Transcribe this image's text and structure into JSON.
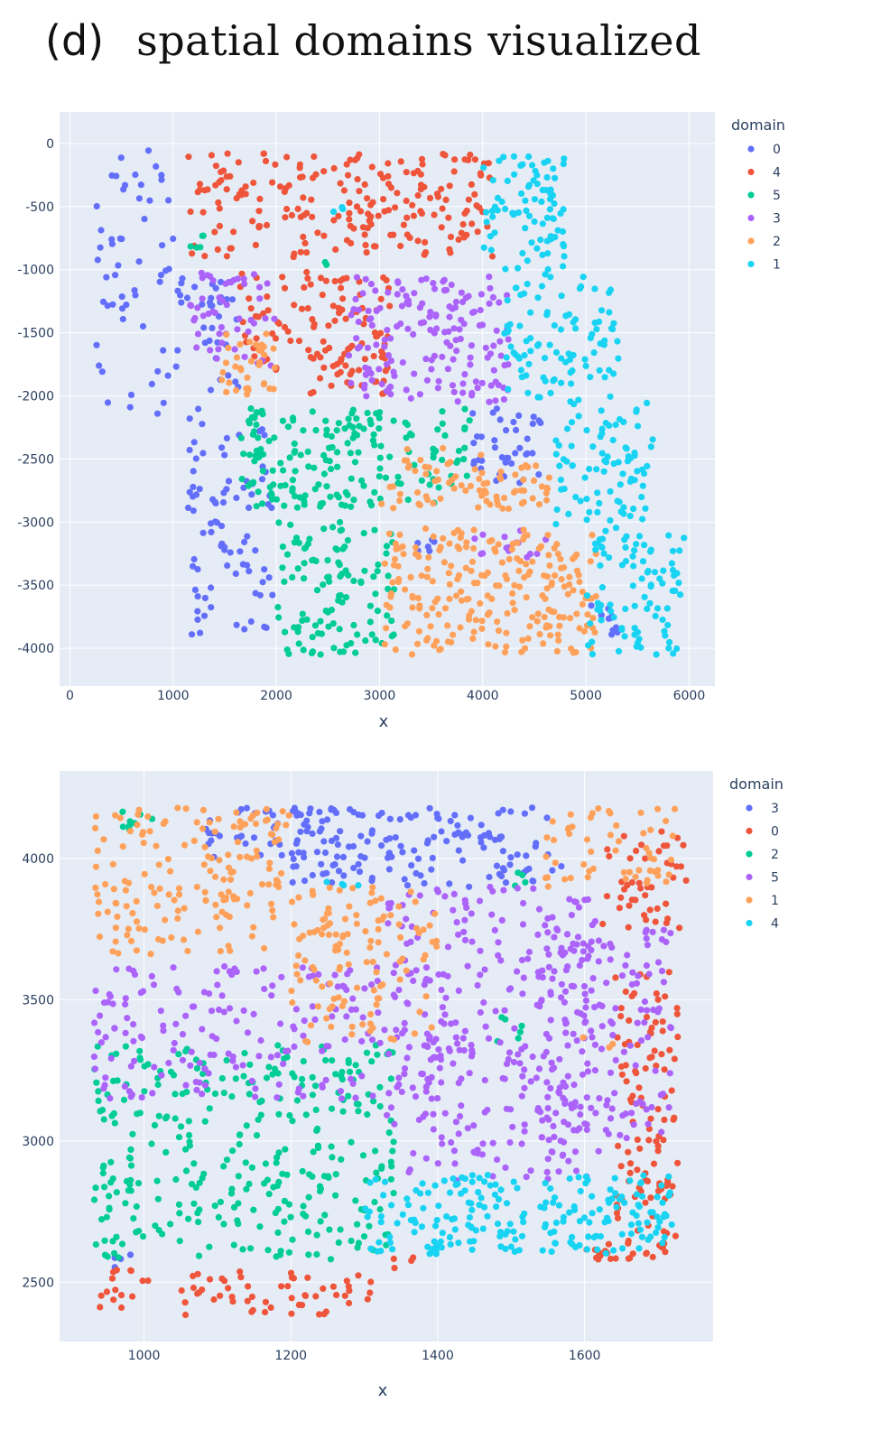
{
  "figure": {
    "panel_label": "(d)",
    "title": "spatial domains visualized"
  },
  "colors": {
    "domain_0": "#636efa",
    "domain_1": "#ef553b",
    "domain_2": "#00cc96",
    "domain_3": "#ab63fa",
    "domain_4": "#ffa15a",
    "domain_5": "#19d3f3",
    "plot_bg": "#e5ecf6",
    "grid": "#ffffff"
  },
  "chart_data": [
    {
      "type": "scatter",
      "xlabel": "x",
      "ylabel": "",
      "xlim": [
        -100,
        6250
      ],
      "ylim": [
        -4300,
        250
      ],
      "xticks": [
        0,
        1000,
        2000,
        3000,
        4000,
        5000,
        6000
      ],
      "yticks": [
        0,
        -500,
        -1000,
        -1500,
        -2000,
        -2500,
        -3000,
        -3500,
        -4000
      ],
      "grid": true,
      "legend": {
        "title": "domain",
        "placement": "top-right-outside",
        "entries": [
          "0",
          "4",
          "5",
          "3",
          "2",
          "1"
        ]
      },
      "series": [
        {
          "name": "0",
          "color": "#636efa",
          "regions": [
            {
              "x": [
                250,
                1000
              ],
              "y": [
                -2150,
                -50
              ],
              "n": 55
            },
            {
              "x": [
                1000,
                1650
              ],
              "y": [
                -2000,
                -1050
              ],
              "n": 35
            },
            {
              "x": [
                1100,
                1650
              ],
              "y": [
                -3900,
                -2100
              ],
              "n": 55
            },
            {
              "x": [
                1650,
                2000
              ],
              "y": [
                -3900,
                -2200
              ],
              "n": 30
            },
            {
              "x": [
                3900,
                4600
              ],
              "y": [
                -2700,
                -2100
              ],
              "n": 40
            },
            {
              "x": [
                3350,
                3550
              ],
              "y": [
                -3250,
                -3100
              ],
              "n": 6
            },
            {
              "x": [
                5050,
                5350
              ],
              "y": [
                -3900,
                -3600
              ],
              "n": 12
            }
          ]
        },
        {
          "name": "4",
          "color": "#ef553b",
          "regions": [
            {
              "x": [
                1150,
                2300
              ],
              "y": [
                -900,
                -80
              ],
              "n": 70
            },
            {
              "x": [
                2200,
                3300
              ],
              "y": [
                -900,
                -80
              ],
              "n": 75
            },
            {
              "x": [
                3300,
                4100
              ],
              "y": [
                -900,
                -80
              ],
              "n": 60
            },
            {
              "x": [
                1650,
                2300
              ],
              "y": [
                -1800,
                -1000
              ],
              "n": 35
            },
            {
              "x": [
                2300,
                3100
              ],
              "y": [
                -2000,
                -1050
              ],
              "n": 85
            }
          ]
        },
        {
          "name": "5",
          "color": "#00cc96",
          "regions": [
            {
              "x": [
                1650,
                3100
              ],
              "y": [
                -2900,
                -2100
              ],
              "n": 140
            },
            {
              "x": [
                3100,
                3900
              ],
              "y": [
                -2850,
                -2100
              ],
              "n": 40
            },
            {
              "x": [
                2000,
                3150
              ],
              "y": [
                -4050,
                -3000
              ],
              "n": 110
            },
            {
              "x": [
                1150,
                1350
              ],
              "y": [
                -850,
                -700
              ],
              "n": 5
            },
            {
              "x": [
                2400,
                2550
              ],
              "y": [
                -980,
                -920
              ],
              "n": 2
            }
          ]
        },
        {
          "name": "3",
          "color": "#ab63fa",
          "regions": [
            {
              "x": [
                1150,
                2000
              ],
              "y": [
                -1800,
                -1000
              ],
              "n": 50
            },
            {
              "x": [
                2700,
                3600
              ],
              "y": [
                -2050,
                -1050
              ],
              "n": 90
            },
            {
              "x": [
                3600,
                4250
              ],
              "y": [
                -2050,
                -1050
              ],
              "n": 75
            },
            {
              "x": [
                3800,
                4800
              ],
              "y": [
                -3300,
                -3050
              ],
              "n": 15
            }
          ]
        },
        {
          "name": "2",
          "color": "#ffa15a",
          "regions": [
            {
              "x": [
                1400,
                2000
              ],
              "y": [
                -2000,
                -1500
              ],
              "n": 35
            },
            {
              "x": [
                3000,
                4000
              ],
              "y": [
                -2900,
                -2400
              ],
              "n": 40
            },
            {
              "x": [
                3950,
                4650
              ],
              "y": [
                -2900,
                -2550
              ],
              "n": 40
            },
            {
              "x": [
                3050,
                5100
              ],
              "y": [
                -4050,
                -3050
              ],
              "n": 230
            }
          ]
        },
        {
          "name": "1",
          "color": "#19d3f3",
          "regions": [
            {
              "x": [
                4000,
                4800
              ],
              "y": [
                -1050,
                -100
              ],
              "n": 85
            },
            {
              "x": [
                4200,
                5350
              ],
              "y": [
                -2050,
                -1050
              ],
              "n": 95
            },
            {
              "x": [
                4700,
                5650
              ],
              "y": [
                -3050,
                -2050
              ],
              "n": 85
            },
            {
              "x": [
                5000,
                5950
              ],
              "y": [
                -4050,
                -3050
              ],
              "n": 90
            },
            {
              "x": [
                2550,
                2700
              ],
              "y": [
                -550,
                -450
              ],
              "n": 3
            }
          ]
        }
      ]
    },
    {
      "type": "scatter",
      "xlabel": "x",
      "ylabel": "",
      "xlim": [
        885,
        1775
      ],
      "ylim": [
        2290,
        4310
      ],
      "xticks": [
        1000,
        1200,
        1400,
        1600
      ],
      "yticks": [
        2500,
        3000,
        3500,
        4000
      ],
      "grid": true,
      "legend": {
        "title": "domain",
        "placement": "top-right-outside",
        "entries": [
          "3",
          "0",
          "2",
          "5",
          "1",
          "4"
        ]
      },
      "series": [
        {
          "name": "3",
          "color": "#636efa",
          "regions": [
            {
              "x": [
                1080,
                1300
              ],
              "y": [
                4000,
                4180
              ],
              "n": 55
            },
            {
              "x": [
                1200,
                1540
              ],
              "y": [
                3900,
                4180
              ],
              "n": 130
            },
            {
              "x": [
                1540,
                1570
              ],
              "y": [
                3950,
                4150
              ],
              "n": 4
            },
            {
              "x": [
                930,
                990
              ],
              "y": [
                2500,
                2600
              ],
              "n": 4
            }
          ]
        },
        {
          "name": "0",
          "color": "#ef553b",
          "regions": [
            {
              "x": [
                940,
                1310
              ],
              "y": [
                2380,
                2550
              ],
              "n": 70
            },
            {
              "x": [
                1640,
                1730
              ],
              "y": [
                2600,
                3600
              ],
              "n": 110
            },
            {
              "x": [
                1620,
                1740
              ],
              "y": [
                3750,
                4100
              ],
              "n": 45
            },
            {
              "x": [
                1600,
                1710
              ],
              "y": [
                2580,
                2640
              ],
              "n": 20
            },
            {
              "x": [
                1340,
                1380
              ],
              "y": [
                2550,
                2600
              ],
              "n": 4
            }
          ]
        },
        {
          "name": "2",
          "color": "#00cc96",
          "regions": [
            {
              "x": [
                930,
                1340
              ],
              "y": [
                2580,
                3340
              ],
              "n": 320
            },
            {
              "x": [
                930,
                1020
              ],
              "y": [
                4100,
                4180
              ],
              "n": 8
            },
            {
              "x": [
                1480,
                1520
              ],
              "y": [
                3350,
                3450
              ],
              "n": 6
            },
            {
              "x": [
                1490,
                1520
              ],
              "y": [
                3900,
                3950
              ],
              "n": 4
            }
          ]
        },
        {
          "name": "5",
          "color": "#ab63fa",
          "regions": [
            {
              "x": [
                930,
                1420
              ],
              "y": [
                3150,
                3620
              ],
              "n": 210
            },
            {
              "x": [
                1330,
                1620
              ],
              "y": [
                2860,
                3900
              ],
              "n": 290
            },
            {
              "x": [
                1540,
                1720
              ],
              "y": [
                3000,
                3750
              ],
              "n": 130
            }
          ]
        },
        {
          "name": "1",
          "color": "#ffa15a",
          "regions": [
            {
              "x": [
                930,
                1200
              ],
              "y": [
                3650,
                4180
              ],
              "n": 160
            },
            {
              "x": [
                1200,
                1400
              ],
              "y": [
                3350,
                3900
              ],
              "n": 120
            },
            {
              "x": [
                1540,
                1730
              ],
              "y": [
                3900,
                4180
              ],
              "n": 55
            },
            {
              "x": [
                1590,
                1640
              ],
              "y": [
                3330,
                3380
              ],
              "n": 3
            }
          ]
        },
        {
          "name": "4",
          "color": "#19d3f3",
          "regions": [
            {
              "x": [
                1300,
                1520
              ],
              "y": [
                2600,
                2880
              ],
              "n": 110
            },
            {
              "x": [
                1540,
                1720
              ],
              "y": [
                2600,
                2880
              ],
              "n": 100
            },
            {
              "x": [
                1240,
                1300
              ],
              "y": [
                3880,
                3920
              ],
              "n": 4
            }
          ]
        }
      ]
    }
  ]
}
